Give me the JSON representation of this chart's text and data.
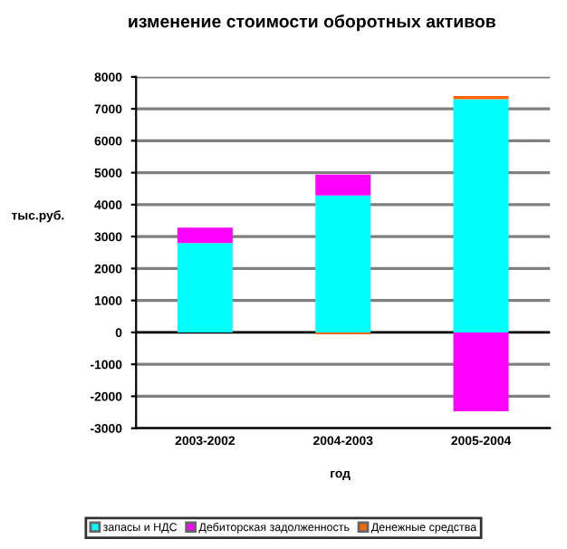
{
  "chart_data": {
    "type": "bar",
    "stacked": true,
    "title": "изменение стоимости оборотных активов",
    "xlabel": "год",
    "ylabel": "тыс.руб.",
    "categories": [
      "2003-2002",
      "2004-2003",
      "2005-2004"
    ],
    "series": [
      {
        "name": "запасы и НДС",
        "color": "#00ffff",
        "values": [
          2800,
          4290,
          7300
        ]
      },
      {
        "name": "Дебиторская задолженность",
        "color": "#ff00ff",
        "values": [
          480,
          650,
          -2470
        ]
      },
      {
        "name": "Денежные средства",
        "color": "#ff6600",
        "values": [
          0,
          -60,
          100
        ]
      }
    ],
    "ylim": [
      -3000,
      8000
    ],
    "yticks": [
      -3000,
      -2000,
      -1000,
      0,
      1000,
      2000,
      3000,
      4000,
      5000,
      6000,
      7000,
      8000
    ],
    "grid": "y",
    "legend": "bottom"
  }
}
